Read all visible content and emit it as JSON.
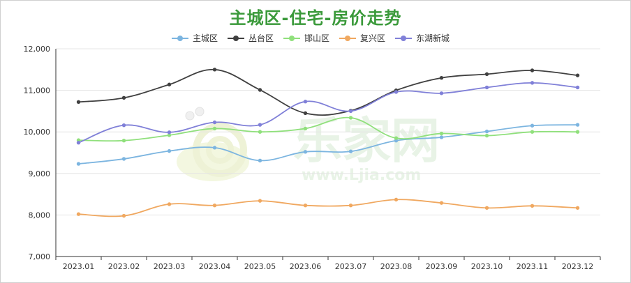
{
  "chart_data": {
    "type": "line",
    "title": "主城区-住宅-房价走势",
    "xlabel": "",
    "ylabel": "",
    "categories": [
      "2023.01",
      "2023.02",
      "2023.03",
      "2023.04",
      "2023.05",
      "2023.06",
      "2023.07",
      "2023.08",
      "2023.09",
      "2023.10",
      "2023.11",
      "2023.12"
    ],
    "ylim": [
      7000,
      12000
    ],
    "yticks": [
      7000,
      8000,
      9000,
      10000,
      11000,
      12000
    ],
    "ytick_labels": [
      "7,000",
      "8,000",
      "9,000",
      "10,000",
      "11,000",
      "12,000"
    ],
    "grid": true,
    "legend": "top-center",
    "smooth": true,
    "series": [
      {
        "name": "主城区",
        "color": "#7cb5e0",
        "values": [
          9230,
          9350,
          9540,
          9620,
          9310,
          9520,
          9530,
          9790,
          9870,
          10010,
          10150,
          10170
        ]
      },
      {
        "name": "丛台区",
        "color": "#404040",
        "values": [
          10720,
          10820,
          11140,
          11500,
          11010,
          10450,
          10510,
          11000,
          11300,
          11390,
          11480,
          11360
        ]
      },
      {
        "name": "邯山区",
        "color": "#90e07c",
        "values": [
          9800,
          9790,
          9920,
          10080,
          10000,
          10080,
          10340,
          9850,
          9960,
          9910,
          10000,
          10000
        ]
      },
      {
        "name": "复兴区",
        "color": "#f0a860",
        "values": [
          8020,
          7980,
          8260,
          8230,
          8340,
          8230,
          8230,
          8370,
          8290,
          8170,
          8220,
          8170
        ]
      },
      {
        "name": "东湖新城",
        "color": "#8080d8",
        "values": [
          9740,
          10160,
          9990,
          10230,
          10170,
          10730,
          10500,
          10960,
          10930,
          11070,
          11180,
          11070
        ]
      }
    ]
  },
  "watermark": {
    "brand": "乐家网",
    "url": "www.Ljia.com"
  }
}
